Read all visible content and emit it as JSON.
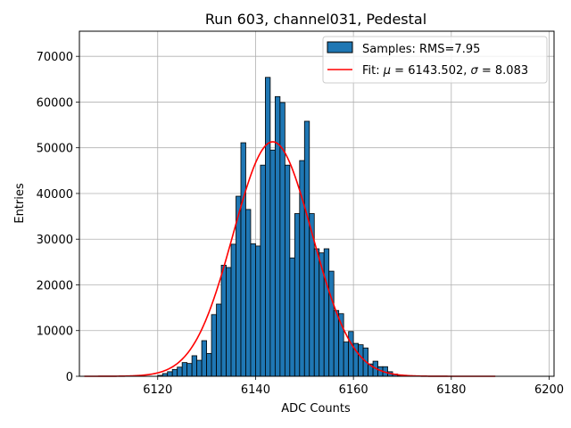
{
  "chart_data": {
    "type": "bar",
    "title": "Run 603, channel031, Pedestal",
    "xlabel": "ADC Counts",
    "ylabel": "Entries",
    "xlim": [
      6104,
      6201
    ],
    "ylim": [
      0,
      75500
    ],
    "xticks": [
      6120,
      6140,
      6160,
      6180,
      6200
    ],
    "yticks": [
      0,
      10000,
      20000,
      30000,
      40000,
      50000,
      60000,
      70000
    ],
    "grid": true,
    "legend_position": "top-right",
    "bar_color": "#1f77b4",
    "fit_color": "#ff0000",
    "bins": [
      [
        6120,
        200
      ],
      [
        6121,
        600
      ],
      [
        6122,
        1000
      ],
      [
        6123,
        1500
      ],
      [
        6124,
        2000
      ],
      [
        6125,
        3000
      ],
      [
        6126,
        2800
      ],
      [
        6127,
        4500
      ],
      [
        6128,
        3500
      ],
      [
        6129,
        7800
      ],
      [
        6130,
        5000
      ],
      [
        6131,
        13500
      ],
      [
        6132,
        15800
      ],
      [
        6133,
        24300
      ],
      [
        6134,
        23800
      ],
      [
        6135,
        28900
      ],
      [
        6136,
        39400
      ],
      [
        6137,
        51100
      ],
      [
        6138,
        36500
      ],
      [
        6139,
        29000
      ],
      [
        6140,
        28500
      ],
      [
        6141,
        46200
      ],
      [
        6142,
        65400
      ],
      [
        6143,
        49500
      ],
      [
        6144,
        61200
      ],
      [
        6145,
        59900
      ],
      [
        6146,
        46200
      ],
      [
        6147,
        25900
      ],
      [
        6148,
        35600
      ],
      [
        6149,
        47200
      ],
      [
        6150,
        55800
      ],
      [
        6151,
        35600
      ],
      [
        6152,
        27900
      ],
      [
        6153,
        27000
      ],
      [
        6154,
        27900
      ],
      [
        6155,
        23000
      ],
      [
        6156,
        14400
      ],
      [
        6157,
        13700
      ],
      [
        6158,
        7500
      ],
      [
        6159,
        9800
      ],
      [
        6160,
        7200
      ],
      [
        6161,
        6900
      ],
      [
        6162,
        6200
      ],
      [
        6163,
        2700
      ],
      [
        6164,
        3300
      ],
      [
        6165,
        2100
      ],
      [
        6166,
        2100
      ],
      [
        6167,
        1000
      ],
      [
        6168,
        500
      ],
      [
        6169,
        200
      ]
    ],
    "fit": {
      "mu": 6143.502,
      "sigma": 8.083,
      "amplitude": 51300,
      "x_range": [
        6105,
        6189
      ]
    },
    "legend": [
      {
        "type": "patch",
        "label": "Samples: RMS=7.95"
      },
      {
        "type": "line",
        "label_prefix": "Fit: ",
        "mu_symbol": "μ",
        "mu_text": " = 6143.502, ",
        "sigma_symbol": "σ",
        "sigma_text": " = 8.083"
      }
    ]
  }
}
